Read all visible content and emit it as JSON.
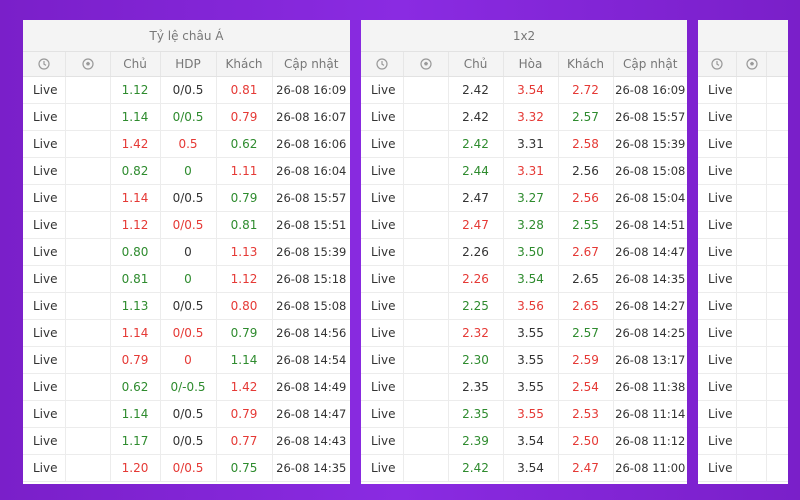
{
  "colors": {
    "red": "#e53935",
    "green": "#2e8b2e",
    "black": "#333333"
  },
  "asia": {
    "title": "Tỷ lệ châu Á",
    "headers": {
      "clock_icon": "clock-icon",
      "ball_icon": "soccer-ball-icon",
      "home": "Chủ",
      "hdp": "HDP",
      "away": "Khách",
      "updated": "Cập nhật"
    },
    "rows": [
      {
        "status": "Live",
        "home": "1.12",
        "home_c": "green",
        "hdp": "0/0.5",
        "hdp_c": "black",
        "away": "0.81",
        "away_c": "red",
        "time": "26-08 16:09"
      },
      {
        "status": "Live",
        "home": "1.14",
        "home_c": "green",
        "hdp": "0/0.5",
        "hdp_c": "green",
        "away": "0.79",
        "away_c": "red",
        "time": "26-08 16:07"
      },
      {
        "status": "Live",
        "home": "1.42",
        "home_c": "red",
        "hdp": "0.5",
        "hdp_c": "red",
        "away": "0.62",
        "away_c": "green",
        "time": "26-08 16:06"
      },
      {
        "status": "Live",
        "home": "0.82",
        "home_c": "green",
        "hdp": "0",
        "hdp_c": "green",
        "away": "1.11",
        "away_c": "red",
        "time": "26-08 16:04"
      },
      {
        "status": "Live",
        "home": "1.14",
        "home_c": "red",
        "hdp": "0/0.5",
        "hdp_c": "black",
        "away": "0.79",
        "away_c": "green",
        "time": "26-08 15:57"
      },
      {
        "status": "Live",
        "home": "1.12",
        "home_c": "red",
        "hdp": "0/0.5",
        "hdp_c": "red",
        "away": "0.81",
        "away_c": "green",
        "time": "26-08 15:51"
      },
      {
        "status": "Live",
        "home": "0.80",
        "home_c": "green",
        "hdp": "0",
        "hdp_c": "black",
        "away": "1.13",
        "away_c": "red",
        "time": "26-08 15:39"
      },
      {
        "status": "Live",
        "home": "0.81",
        "home_c": "green",
        "hdp": "0",
        "hdp_c": "green",
        "away": "1.12",
        "away_c": "red",
        "time": "26-08 15:18"
      },
      {
        "status": "Live",
        "home": "1.13",
        "home_c": "green",
        "hdp": "0/0.5",
        "hdp_c": "black",
        "away": "0.80",
        "away_c": "red",
        "time": "26-08 15:08"
      },
      {
        "status": "Live",
        "home": "1.14",
        "home_c": "red",
        "hdp": "0/0.5",
        "hdp_c": "red",
        "away": "0.79",
        "away_c": "green",
        "time": "26-08 14:56"
      },
      {
        "status": "Live",
        "home": "0.79",
        "home_c": "red",
        "hdp": "0",
        "hdp_c": "red",
        "away": "1.14",
        "away_c": "green",
        "time": "26-08 14:54"
      },
      {
        "status": "Live",
        "home": "0.62",
        "home_c": "green",
        "hdp": "0/-0.5",
        "hdp_c": "green",
        "away": "1.42",
        "away_c": "red",
        "time": "26-08 14:49"
      },
      {
        "status": "Live",
        "home": "1.14",
        "home_c": "green",
        "hdp": "0/0.5",
        "hdp_c": "black",
        "away": "0.79",
        "away_c": "red",
        "time": "26-08 14:47"
      },
      {
        "status": "Live",
        "home": "1.17",
        "home_c": "green",
        "hdp": "0/0.5",
        "hdp_c": "black",
        "away": "0.77",
        "away_c": "red",
        "time": "26-08 14:43"
      },
      {
        "status": "Live",
        "home": "1.20",
        "home_c": "red",
        "hdp": "0/0.5",
        "hdp_c": "red",
        "away": "0.75",
        "away_c": "green",
        "time": "26-08 14:35"
      }
    ]
  },
  "x12": {
    "title": "1x2",
    "headers": {
      "clock_icon": "clock-icon",
      "ball_icon": "soccer-ball-icon",
      "home": "Chủ",
      "draw": "Hòa",
      "away": "Khách",
      "updated": "Cập nhật"
    },
    "rows": [
      {
        "status": "Live",
        "home": "2.42",
        "home_c": "black",
        "draw": "3.54",
        "draw_c": "red",
        "away": "2.72",
        "away_c": "red",
        "time": "26-08 16:09"
      },
      {
        "status": "Live",
        "home": "2.42",
        "home_c": "black",
        "draw": "3.32",
        "draw_c": "red",
        "away": "2.57",
        "away_c": "green",
        "time": "26-08 15:57"
      },
      {
        "status": "Live",
        "home": "2.42",
        "home_c": "green",
        "draw": "3.31",
        "draw_c": "black",
        "away": "2.58",
        "away_c": "red",
        "time": "26-08 15:39"
      },
      {
        "status": "Live",
        "home": "2.44",
        "home_c": "green",
        "draw": "3.31",
        "draw_c": "red",
        "away": "2.56",
        "away_c": "black",
        "time": "26-08 15:08"
      },
      {
        "status": "Live",
        "home": "2.47",
        "home_c": "black",
        "draw": "3.27",
        "draw_c": "green",
        "away": "2.56",
        "away_c": "red",
        "time": "26-08 15:04"
      },
      {
        "status": "Live",
        "home": "2.47",
        "home_c": "red",
        "draw": "3.28",
        "draw_c": "green",
        "away": "2.55",
        "away_c": "green",
        "time": "26-08 14:51"
      },
      {
        "status": "Live",
        "home": "2.26",
        "home_c": "black",
        "draw": "3.50",
        "draw_c": "green",
        "away": "2.67",
        "away_c": "red",
        "time": "26-08 14:47"
      },
      {
        "status": "Live",
        "home": "2.26",
        "home_c": "red",
        "draw": "3.54",
        "draw_c": "green",
        "away": "2.65",
        "away_c": "black",
        "time": "26-08 14:35"
      },
      {
        "status": "Live",
        "home": "2.25",
        "home_c": "green",
        "draw": "3.56",
        "draw_c": "red",
        "away": "2.65",
        "away_c": "red",
        "time": "26-08 14:27"
      },
      {
        "status": "Live",
        "home": "2.32",
        "home_c": "red",
        "draw": "3.55",
        "draw_c": "black",
        "away": "2.57",
        "away_c": "green",
        "time": "26-08 14:25"
      },
      {
        "status": "Live",
        "home": "2.30",
        "home_c": "green",
        "draw": "3.55",
        "draw_c": "black",
        "away": "2.59",
        "away_c": "red",
        "time": "26-08 13:17"
      },
      {
        "status": "Live",
        "home": "2.35",
        "home_c": "black",
        "draw": "3.55",
        "draw_c": "black",
        "away": "2.54",
        "away_c": "red",
        "time": "26-08 11:38"
      },
      {
        "status": "Live",
        "home": "2.35",
        "home_c": "green",
        "draw": "3.55",
        "draw_c": "red",
        "away": "2.53",
        "away_c": "red",
        "time": "26-08 11:14"
      },
      {
        "status": "Live",
        "home": "2.39",
        "home_c": "green",
        "draw": "3.54",
        "draw_c": "black",
        "away": "2.50",
        "away_c": "red",
        "time": "26-08 11:12"
      },
      {
        "status": "Live",
        "home": "2.42",
        "home_c": "green",
        "draw": "3.54",
        "draw_c": "black",
        "away": "2.47",
        "away_c": "red",
        "time": "26-08 11:00"
      }
    ]
  },
  "third": {
    "headers": {
      "clock_icon": "clock-icon",
      "ball_icon": "soccer-ball-icon"
    },
    "rows": [
      "Live",
      "Live",
      "Live",
      "Live",
      "Live",
      "Live",
      "Live",
      "Live",
      "Live",
      "Live",
      "Live",
      "Live",
      "Live",
      "Live",
      "Live"
    ]
  }
}
